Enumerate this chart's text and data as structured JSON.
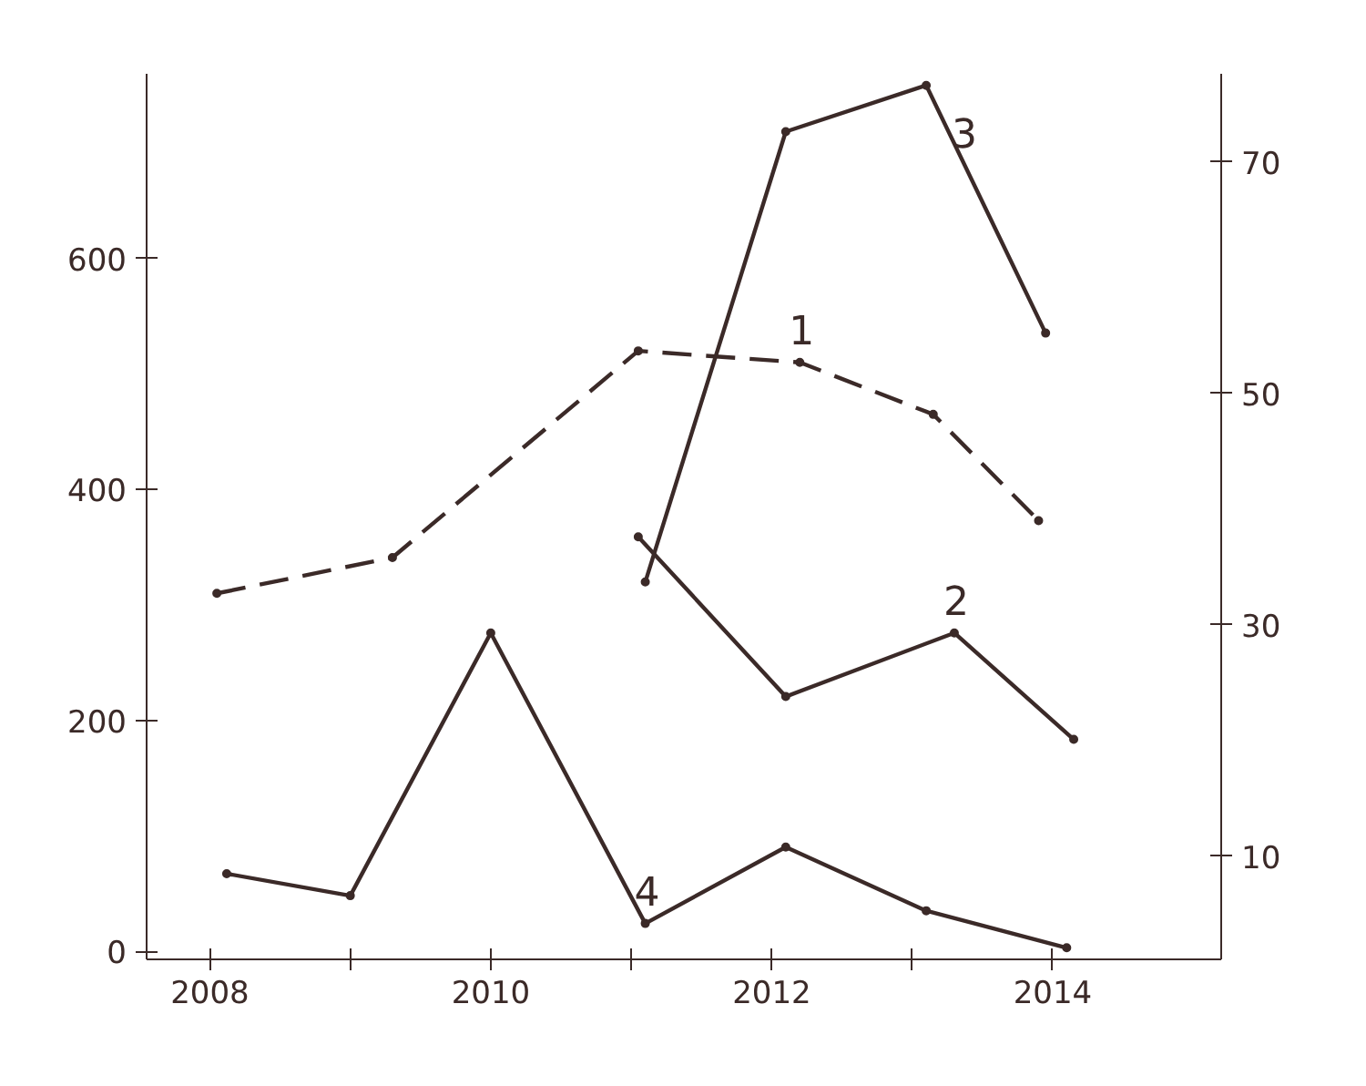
{
  "chart_data": {
    "type": "line",
    "xlim": [
      2007.55,
      2015.2
    ],
    "xticks": [
      2008,
      {
        "value": 2009,
        "label": null
      },
      2010,
      {
        "value": 2011,
        "label": null
      },
      2012,
      {
        "value": 2013,
        "label": null
      },
      2014
    ],
    "ylim": [
      -7,
      760
    ],
    "yticks": [
      0,
      200,
      400,
      600
    ],
    "y2lim": [
      1.1,
      77.6
    ],
    "y2ticks": [
      10,
      30,
      50,
      70
    ],
    "grid": false,
    "marker": "circle",
    "series": [
      {
        "name": "1",
        "color": "#3b2a28",
        "line_style": "dashed",
        "x": [
          2008.05,
          2009.3,
          2011.05,
          2012.2,
          2013.15,
          2013.9
        ],
        "values": [
          310,
          341,
          520,
          510,
          465,
          373
        ]
      },
      {
        "name": "2",
        "color": "#3b2a28",
        "axis": "y2",
        "x": [
          2011.05,
          2012.1,
          2013.3,
          2014.15
        ],
        "values": [
          37.6,
          23.8,
          29.3,
          20.1
        ]
      },
      {
        "name": "3",
        "color": "#3b2a28",
        "axis": "y2",
        "x": [
          2011.1,
          2012.1,
          2013.1,
          2013.95
        ],
        "values": [
          33.7,
          72.6,
          76.6,
          55.2
        ]
      },
      {
        "name": "4",
        "color": "#3b2a28",
        "axis": "y2",
        "x": [
          2008.12,
          2009.0,
          2010.0,
          2011.1,
          2012.1,
          2013.1,
          2014.1
        ],
        "values": [
          8.5,
          6.6,
          29.3,
          4.2,
          10.8,
          5.3,
          2.1
        ]
      }
    ]
  }
}
